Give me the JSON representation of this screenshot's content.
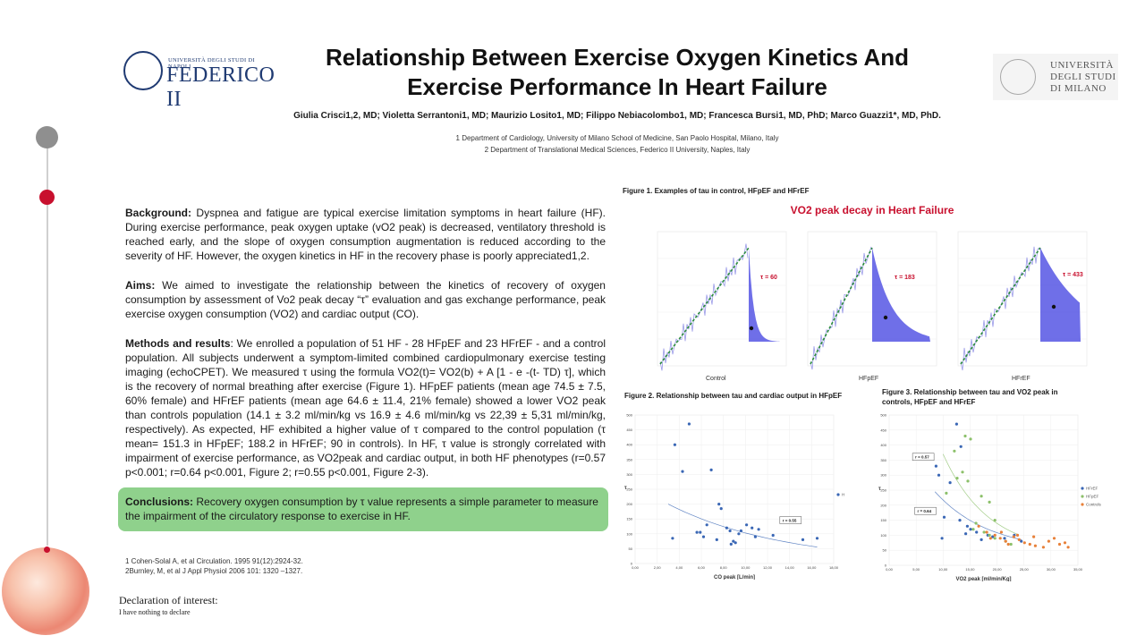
{
  "header": {
    "title_line1": "Relationship Between Exercise Oxygen Kinetics And",
    "title_line2": "Exercise Performance In Heart Failure",
    "authors": "Giulia Crisci1,2, MD; Violetta Serrantoni1, MD; Maurizio Losito1, MD; Filippo Nebiacolombo1, MD; Francesca Bursi1, MD, PhD; Marco Guazzi1*, MD, PhD.",
    "affiliation1": "1 Department of Cardiology, University of Milano School of Medicine, San Paolo Hospital, Milano, Italy",
    "affiliation2": "2 Department of Translational Medical Sciences, Federico II University, Naples, Italy",
    "logo_left_top": "UNIVERSITÀ DEGLI STUDI DI NAPOLI",
    "logo_left_name": "FEDERICO II",
    "logo_right_line1": "UNIVERSITÀ",
    "logo_right_line2": "DEGLI STUDI",
    "logo_right_line3": "DI MILANO"
  },
  "sections": {
    "background_label": "Background:",
    "background_text": "Dyspnea and fatigue are typical exercise limitation symptoms in heart failure (HF). During exercise performance, peak oxygen uptake (vO2 peak) is decreased, ventilatory threshold is reached early, and the slope of oxygen consumption augmentation is reduced according to the severity of HF. However, the oxygen kinetics in HF in the recovery phase is poorly appreciated1,2.",
    "aims_label": "Aims:",
    "aims_text": "We aimed to investigate the relationship between the kinetics of recovery of oxygen consumption by assessment of Vo2 peak decay “τ” evaluation and gas exchange performance, peak exercise oxygen consumption (VO2) and cardiac output (CO).",
    "methods_label": "Methods and results",
    "methods_text": ": We enrolled a population of 51 HF - 28 HFpEF and 23 HFrEF - and a control population. All subjects underwent a symptom-limited combined cardiopulmonary exercise testing imaging (echoCPET). We measured τ using the formula VO2(t)= VO2(b) + A [1 - e -(t- TD) τ], which is the recovery of normal breathing after exercise (Figure 1). HFpEF patients (mean age 74.5 ± 7.5, 60% female) and HFrEF patients (mean age 64.6 ± 11.4, 21% female) showed a lower VO2 peak than controls population (14.1 ± 3.2 ml/min/kg vs 16.9 ± 4.6 ml/min/kg vs 22,39 ± 5,31 ml/min/kg, respectively). As expected, HF exhibited a higher value of τ compared to the control population (τ mean= 151.3 in HFpEF; 188.2 in HFrEF; 90 in controls). In HF, τ value is strongly correlated with impairment of exercise performance, as VO2peak and cardiac output, in both HF phenotypes (r=0.57 p<0.001; r=0.64 p<0.001, Figure 2; r=0.55 p<0.001, Figure 2-3).",
    "conclusions_label": "Conclusions:",
    "conclusions_text": "Recovery oxygen consumption by τ value represents a simple parameter to measure the impairment of the circulatory response to exercise in HF.",
    "ref1": "1 Cohen-Solal A, et al Circulation. 1995 91(12):2924-32.",
    "ref2": "2Burnley, M, et al J Appl Physiol 2006 101: 1320 –1327.",
    "declaration_heading": "Declaration of interest:",
    "declaration_text": "I have nothing to declare"
  },
  "figures": {
    "fig1_caption": "Figure 1. Examples of tau in control, HFpEF and HFrEF",
    "fig1_title": "VO2 peak decay  in Heart Failure",
    "panels": [
      {
        "label": "Control",
        "tau": "τ = 60"
      },
      {
        "label": "HFpEF",
        "tau": "τ = 183"
      },
      {
        "label": "HFrEF",
        "tau": "τ = 433"
      }
    ],
    "fig2_caption": "Figure 2. Relationship between tau and cardiac output in HFpEF",
    "fig3_caption": "Figure 3. Relationship between tau and VO2 peak in controls, HFpEF and HFrEF",
    "colors": {
      "blue": "#3a67b5",
      "green": "#8cc06a",
      "orange": "#e8813a",
      "red": "#c8102e",
      "shade": "#3f3fe0"
    }
  },
  "chart_data": [
    {
      "type": "scatter",
      "xlabel": "CO peak [L/min]",
      "ylabel": "τ",
      "xlim": [
        0,
        18
      ],
      "ylim": [
        0,
        500
      ],
      "x_ticks": [
        "0,00",
        "2,00",
        "4,00",
        "6,00",
        "8,00",
        "10,00",
        "12,00",
        "14,00",
        "16,00",
        "18,00"
      ],
      "y_ticks": [
        0,
        50,
        100,
        150,
        200,
        250,
        300,
        350,
        400,
        450,
        500
      ],
      "legend": [
        "HFpEF"
      ],
      "annotation": "r = 0.55",
      "series": [
        {
          "name": "HFpEF",
          "color": "#3a67b5",
          "points": [
            [
              4.9,
              470
            ],
            [
              3.6,
              400
            ],
            [
              4.3,
              310
            ],
            [
              6.9,
              315
            ],
            [
              7.6,
              200
            ],
            [
              7.8,
              185
            ],
            [
              3.4,
              85
            ],
            [
              5.6,
              105
            ],
            [
              6.2,
              90
            ],
            [
              5.9,
              105
            ],
            [
              7.4,
              80
            ],
            [
              6.5,
              130
            ],
            [
              8.3,
              120
            ],
            [
              8.6,
              110
            ],
            [
              9.1,
              70
            ],
            [
              9.4,
              100
            ],
            [
              8.7,
              65
            ],
            [
              9.6,
              110
            ],
            [
              10.1,
              130
            ],
            [
              10.6,
              120
            ],
            [
              11.2,
              115
            ],
            [
              12.5,
              95
            ],
            [
              15.2,
              80
            ],
            [
              16.5,
              85
            ],
            [
              10.9,
              90
            ],
            [
              8.9,
              75
            ]
          ]
        }
      ],
      "trend": [
        [
          3,
          200
        ],
        [
          16.5,
          55
        ]
      ]
    },
    {
      "type": "scatter",
      "xlabel": "VO2 peak [ml/min/Kg]",
      "ylabel": "τ",
      "xlim": [
        0,
        35
      ],
      "ylim": [
        0,
        500
      ],
      "x_ticks": [
        "0,00",
        "5,00",
        "10,00",
        "15,00",
        "20,00",
        "25,00",
        "30,00",
        "35,00"
      ],
      "y_ticks": [
        0,
        50,
        100,
        150,
        200,
        250,
        300,
        350,
        400,
        450,
        500
      ],
      "legend": [
        "HFrEF",
        "HFpEF",
        "Controls"
      ],
      "annotations": [
        "r = 0.57",
        "r = 0.64"
      ],
      "series": [
        {
          "name": "HFrEF",
          "color": "#3a67b5",
          "points": [
            [
              12.5,
              470
            ],
            [
              13.3,
              395
            ],
            [
              8.7,
              330
            ],
            [
              9.2,
              300
            ],
            [
              11.3,
              275
            ],
            [
              10.2,
              160
            ],
            [
              13.1,
              150
            ],
            [
              14.5,
              130
            ],
            [
              15.1,
              120
            ],
            [
              16.2,
              110
            ],
            [
              9.8,
              90
            ],
            [
              18.3,
              100
            ],
            [
              21.4,
              90
            ],
            [
              23.2,
              100
            ],
            [
              24.5,
              80
            ],
            [
              14.2,
              105
            ],
            [
              17.1,
              85
            ],
            [
              19.2,
              95
            ]
          ]
        },
        {
          "name": "HFpEF",
          "color": "#8cc06a",
          "points": [
            [
              14.1,
              430
            ],
            [
              15.1,
              420
            ],
            [
              12.1,
              380
            ],
            [
              13.6,
              310
            ],
            [
              12.6,
              290
            ],
            [
              14.6,
              280
            ],
            [
              10.6,
              240
            ],
            [
              17.1,
              230
            ],
            [
              18.6,
              210
            ],
            [
              19.6,
              150
            ],
            [
              16.1,
              140
            ],
            [
              15.6,
              120
            ],
            [
              17.6,
              110
            ],
            [
              18.6,
              100
            ],
            [
              19.6,
              90
            ],
            [
              21.6,
              80
            ],
            [
              22.6,
              70
            ]
          ]
        },
        {
          "name": "Controls",
          "color": "#e8813a",
          "points": [
            [
              16.6,
              130
            ],
            [
              18.1,
              110
            ],
            [
              19.6,
              100
            ],
            [
              20.6,
              90
            ],
            [
              21.6,
              80
            ],
            [
              22.1,
              70
            ],
            [
              23.1,
              95
            ],
            [
              24.1,
              85
            ],
            [
              25.1,
              75
            ],
            [
              26.1,
              70
            ],
            [
              27.1,
              65
            ],
            [
              28.6,
              60
            ],
            [
              30.6,
              90
            ],
            [
              31.6,
              70
            ],
            [
              32.6,
              75
            ],
            [
              33.2,
              60
            ],
            [
              18.8,
              90
            ],
            [
              20.8,
              110
            ],
            [
              23.8,
              100
            ],
            [
              26.8,
              95
            ],
            [
              29.6,
              80
            ]
          ]
        }
      ]
    }
  ]
}
